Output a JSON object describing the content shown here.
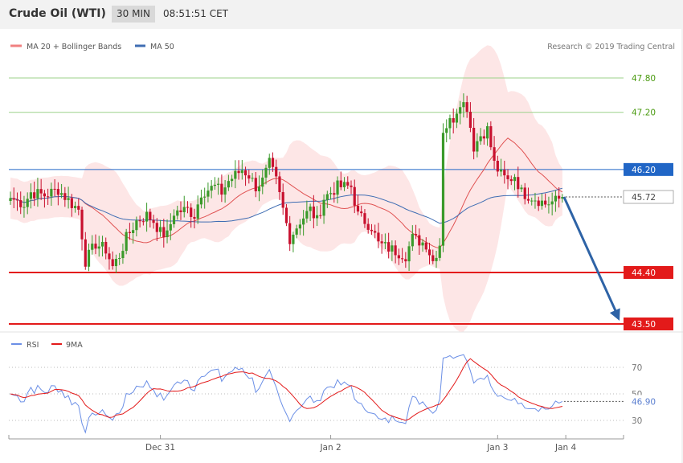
{
  "header": {
    "instrument": "Crude Oil (WTI)",
    "timeframe": "30 MIN",
    "time": "08:51:51 CET"
  },
  "legend": {
    "ma20_label": "MA 20 + Bollinger Bands",
    "ma50_label": "MA 50",
    "credit": "Research © 2019 Trading Central",
    "rsi_label": "RSI",
    "rsi_ma_label": "9MA"
  },
  "colors": {
    "bull": "#3a9a2a",
    "bear": "#c8102e",
    "ma20": "#e05252",
    "ma50": "#3f6db3",
    "band": "#fde6e6",
    "resistance": "#9bd28a",
    "pivot": "#2166c6",
    "support": "#e31a1a",
    "arrow": "#2e63a6",
    "rsi": "#6b8fe6",
    "rsi_ma": "#e31a1a"
  },
  "chart_data": [
    {
      "type": "candlestick",
      "ylim": [
        43.2,
        48.2
      ],
      "x_ticks": [
        {
          "label": "Dec 31",
          "index": 44
        },
        {
          "label": "Jan 2",
          "index": 94
        },
        {
          "label": "Jan 3",
          "index": 143
        },
        {
          "label": "Jan 4",
          "index": 163
        }
      ],
      "levels": [
        {
          "value": 47.8,
          "label": "47.80",
          "kind": "resistance"
        },
        {
          "value": 47.2,
          "label": "47.20",
          "kind": "resistance"
        },
        {
          "value": 46.2,
          "label": "46.20",
          "kind": "pivot"
        },
        {
          "value": 45.72,
          "label": "45.72",
          "kind": "last"
        },
        {
          "value": 44.4,
          "label": "44.40",
          "kind": "support"
        },
        {
          "value": 43.5,
          "label": "43.50",
          "kind": "support"
        }
      ],
      "forecast_arrow": {
        "from_value": 45.72,
        "to_value": 43.5
      },
      "close_anchors": [
        [
          0,
          45.7
        ],
        [
          4,
          45.6
        ],
        [
          6,
          45.8
        ],
        [
          10,
          45.75
        ],
        [
          14,
          45.85
        ],
        [
          18,
          45.6
        ],
        [
          20,
          45.5
        ],
        [
          22,
          44.6
        ],
        [
          25,
          44.9
        ],
        [
          28,
          44.8
        ],
        [
          30,
          44.5
        ],
        [
          32,
          44.7
        ],
        [
          34,
          45.0
        ],
        [
          37,
          45.3
        ],
        [
          40,
          45.4
        ],
        [
          42,
          45.3
        ],
        [
          44,
          45.1
        ],
        [
          46,
          45.05
        ],
        [
          48,
          45.45
        ],
        [
          52,
          45.5
        ],
        [
          54,
          45.4
        ],
        [
          56,
          45.8
        ],
        [
          60,
          45.9
        ],
        [
          62,
          45.8
        ],
        [
          64,
          46.0
        ],
        [
          68,
          46.2
        ],
        [
          70,
          46.1
        ],
        [
          72,
          45.9
        ],
        [
          74,
          46.0
        ],
        [
          76,
          46.3
        ],
        [
          78,
          46.0
        ],
        [
          80,
          45.5
        ],
        [
          82,
          45.0
        ],
        [
          85,
          45.3
        ],
        [
          88,
          45.5
        ],
        [
          90,
          45.3
        ],
        [
          92,
          45.7
        ],
        [
          96,
          45.9
        ],
        [
          100,
          45.9
        ],
        [
          102,
          45.4
        ],
        [
          106,
          45.2
        ],
        [
          108,
          44.9
        ],
        [
          112,
          44.8
        ],
        [
          116,
          44.7
        ],
        [
          118,
          45.0
        ],
        [
          122,
          44.9
        ],
        [
          124,
          44.6
        ],
        [
          126,
          44.9
        ],
        [
          127,
          46.9
        ],
        [
          130,
          47.1
        ],
        [
          132,
          47.4
        ],
        [
          134,
          47.3
        ],
        [
          136,
          46.6
        ],
        [
          138,
          46.8
        ],
        [
          140,
          46.9
        ],
        [
          142,
          46.3
        ],
        [
          144,
          46.1
        ],
        [
          146,
          46.0
        ],
        [
          148,
          46.1
        ],
        [
          150,
          45.8
        ],
        [
          154,
          45.7
        ],
        [
          157,
          45.6
        ],
        [
          160,
          45.65
        ],
        [
          162,
          45.72
        ]
      ],
      "series": [
        {
          "name": "MA 20"
        },
        {
          "name": "MA 50"
        }
      ]
    },
    {
      "type": "line",
      "ylim": [
        20,
        85
      ],
      "y_ticks": [
        70,
        50,
        30
      ],
      "last_value": "46.90",
      "series": [
        {
          "name": "RSI"
        },
        {
          "name": "9MA"
        }
      ]
    }
  ]
}
